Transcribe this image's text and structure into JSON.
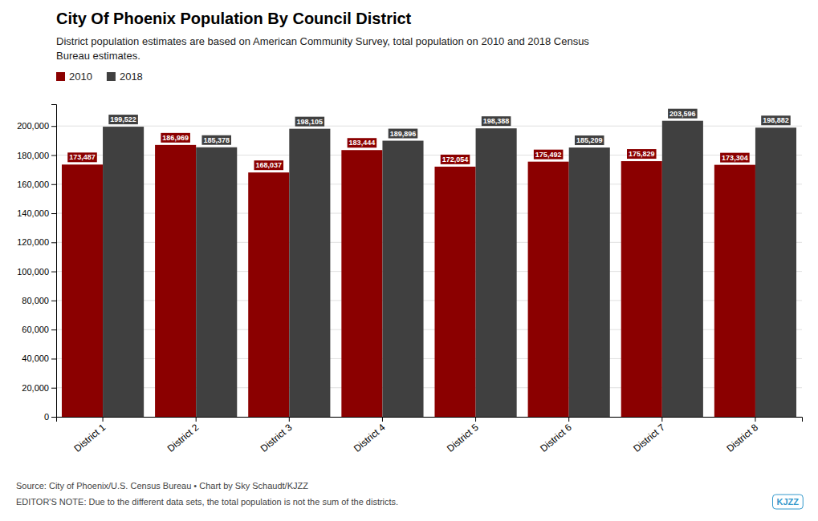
{
  "chart_data": {
    "type": "bar",
    "title": "City Of Phoenix Population By Council District",
    "subtitle": "District population estimates are based on American Community Survey, total population on 2010 and 2018 Census\nBureau estimates.",
    "categories": [
      "District 1",
      "District 2",
      "District 3",
      "District 4",
      "District 5",
      "District 6",
      "District 7",
      "District 8"
    ],
    "series": [
      {
        "name": "2010",
        "color": "#8B0000",
        "values": [
          173487,
          186969,
          168037,
          183444,
          172054,
          175492,
          175829,
          173304
        ],
        "value_labels": [
          "173,487",
          "186,969",
          "168,037",
          "183,444",
          "172,054",
          "175,492",
          "175,829",
          "173,304"
        ]
      },
      {
        "name": "2018",
        "color": "#404040",
        "values": [
          199522,
          185378,
          198105,
          189896,
          198388,
          185209,
          203596,
          198882
        ],
        "value_labels": [
          "199,522",
          "185,378",
          "198,105",
          "189,896",
          "198,388",
          "185,209",
          "203,596",
          "198,882"
        ]
      }
    ],
    "ylim": [
      0,
      215000
    ],
    "yticks": [
      0,
      {
        "value": 20000,
        "label": "20,000"
      },
      {
        "value": 40000,
        "label": "40,000"
      },
      {
        "value": 60000,
        "label": "60,000"
      },
      {
        "value": 80000,
        "label": "80,000"
      },
      {
        "value": 100000,
        "label": "100,000"
      },
      {
        "value": 120000,
        "label": "120,000"
      },
      {
        "value": 140000,
        "label": "140,000"
      },
      {
        "value": 160000,
        "label": "160,000"
      },
      {
        "value": 180000,
        "label": "180,000"
      },
      {
        "value": 200000,
        "label": "200,000"
      }
    ],
    "grid": true,
    "legend": "top-left",
    "data_labels": true,
    "annotations": [
      "Source: City of Phoenix/U.S. Census Bureau • Chart by Sky Schaudt/KJZZ",
      "EDITOR'S NOTE: Due to the different data sets, the total population is not the sum of the districts.",
      "KJZZ"
    ]
  }
}
